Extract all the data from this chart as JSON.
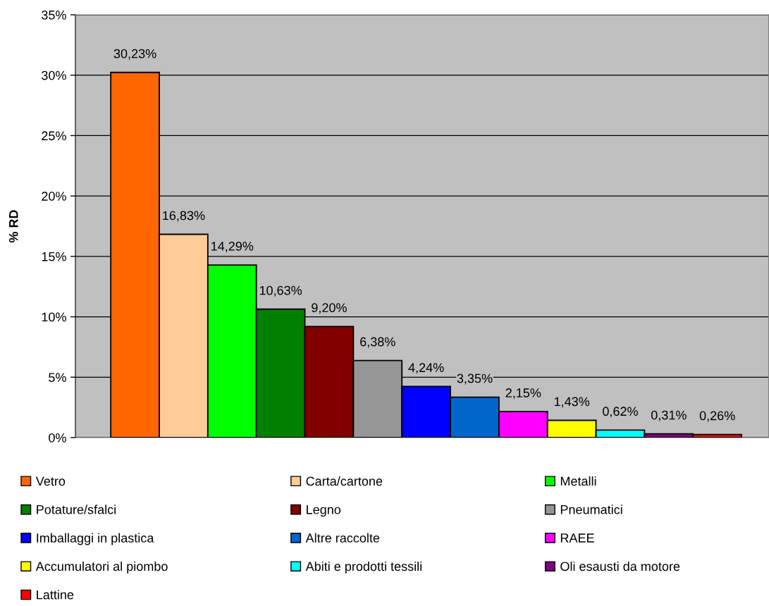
{
  "chart_data": {
    "type": "bar",
    "ylabel": "% RD",
    "categories": [
      null
    ],
    "series": [
      {
        "name": "Vetro",
        "color": "#ff6600",
        "values": [
          30.23
        ],
        "value_labels": [
          "30,23%"
        ]
      },
      {
        "name": "Carta/cartone",
        "color": "#ffcc99",
        "values": [
          16.83
        ],
        "value_labels": [
          "16,83%"
        ]
      },
      {
        "name": "Metalli",
        "color": "#00ff00",
        "values": [
          14.29
        ],
        "value_labels": [
          "14,29%"
        ]
      },
      {
        "name": "Potature/sfalci",
        "color": "#008000",
        "values": [
          10.63
        ],
        "value_labels": [
          "10,63%"
        ]
      },
      {
        "name": "Legno",
        "color": "#800000",
        "values": [
          9.2
        ],
        "value_labels": [
          "9,20%"
        ]
      },
      {
        "name": "Pneumatici",
        "color": "#969696",
        "values": [
          6.38
        ],
        "value_labels": [
          "6,38%"
        ]
      },
      {
        "name": "Imballaggi in plastica",
        "color": "#0000ff",
        "values": [
          4.24
        ],
        "value_labels": [
          "4,24%"
        ]
      },
      {
        "name": "Altre raccolte",
        "color": "#0066cc",
        "values": [
          3.35
        ],
        "value_labels": [
          "3,35%"
        ]
      },
      {
        "name": "RAEE",
        "color": "#ff00ff",
        "values": [
          2.15
        ],
        "value_labels": [
          "2,15%"
        ]
      },
      {
        "name": "Accumulatori al piombo",
        "color": "#ffff00",
        "values": [
          1.43
        ],
        "value_labels": [
          "1,43%"
        ]
      },
      {
        "name": "Abiti e prodotti tessili",
        "color": "#00ffff",
        "values": [
          0.62
        ],
        "value_labels": [
          "0,62%"
        ]
      },
      {
        "name": "Oli esausti da motore",
        "color": "#800080",
        "values": [
          0.31
        ],
        "value_labels": [
          "0,31%"
        ]
      },
      {
        "name": "Lattine",
        "color": "#ff0000",
        "values": [
          0.26
        ],
        "value_labels": [
          "0,26%"
        ]
      }
    ],
    "ylim": [
      0,
      35
    ],
    "yticks": [
      {
        "value": 0,
        "label": "0%"
      },
      {
        "value": 5,
        "label": "5%"
      },
      {
        "value": 10,
        "label": "10%"
      },
      {
        "value": 15,
        "label": "15%"
      },
      {
        "value": 20,
        "label": "20%"
      },
      {
        "value": 25,
        "label": "25%"
      },
      {
        "value": 30,
        "label": "30%"
      },
      {
        "value": 35,
        "label": "35%"
      }
    ],
    "grid": "y",
    "legend": "bottom"
  }
}
